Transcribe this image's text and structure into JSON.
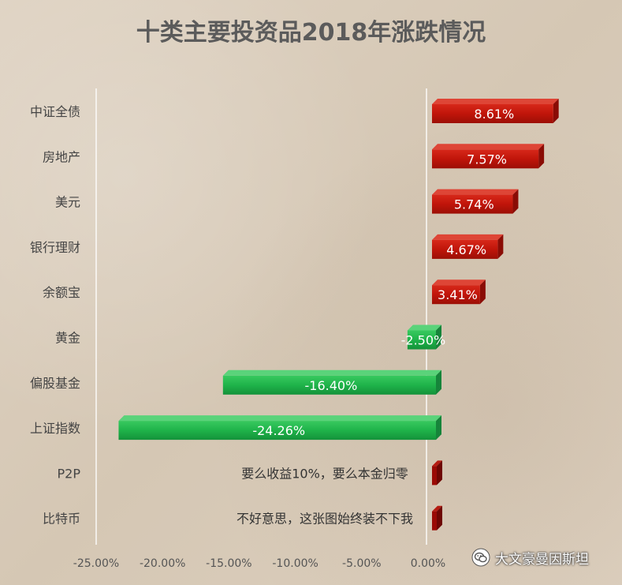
{
  "chart_data": {
    "type": "bar",
    "orientation": "horizontal",
    "title": "十类主要投资品2018年涨跌情况",
    "categories": [
      "中证全债",
      "房地产",
      "美元",
      "银行理财",
      "余额宝",
      "黄金",
      "偏股基金",
      "上证指数",
      "P2P",
      "比特币"
    ],
    "values": [
      8.61,
      7.57,
      5.74,
      4.67,
      3.41,
      -2.5,
      -16.4,
      -24.26,
      null,
      null
    ],
    "value_labels": [
      "8.61%",
      "7.57%",
      "5.74%",
      "4.67%",
      "3.41%",
      "-2.50%",
      "-16.40%",
      "-24.26%",
      "",
      ""
    ],
    "annotations": [
      {
        "category": "P2P",
        "text": "要么收益10%，要么本金归零"
      },
      {
        "category": "比特币",
        "text": "不好意思，这张图始终装不下我"
      }
    ],
    "x_ticks": [
      -25,
      -20,
      -15,
      -10,
      -5,
      0
    ],
    "x_tick_labels": [
      "-25.00%",
      "-20.00%",
      "-15.00%",
      "-10.00%",
      "-5.00%",
      "0.00%"
    ],
    "xlim": [
      -25,
      0.5
    ],
    "grid": "vertical lines at -25% and 0%",
    "colors": {
      "positive": "#c0150a",
      "negative": "#1fb34a",
      "stub": "#9a0a05"
    }
  },
  "watermark": {
    "text": "大文豪曼因斯坦",
    "icon": "wechat-icon"
  }
}
